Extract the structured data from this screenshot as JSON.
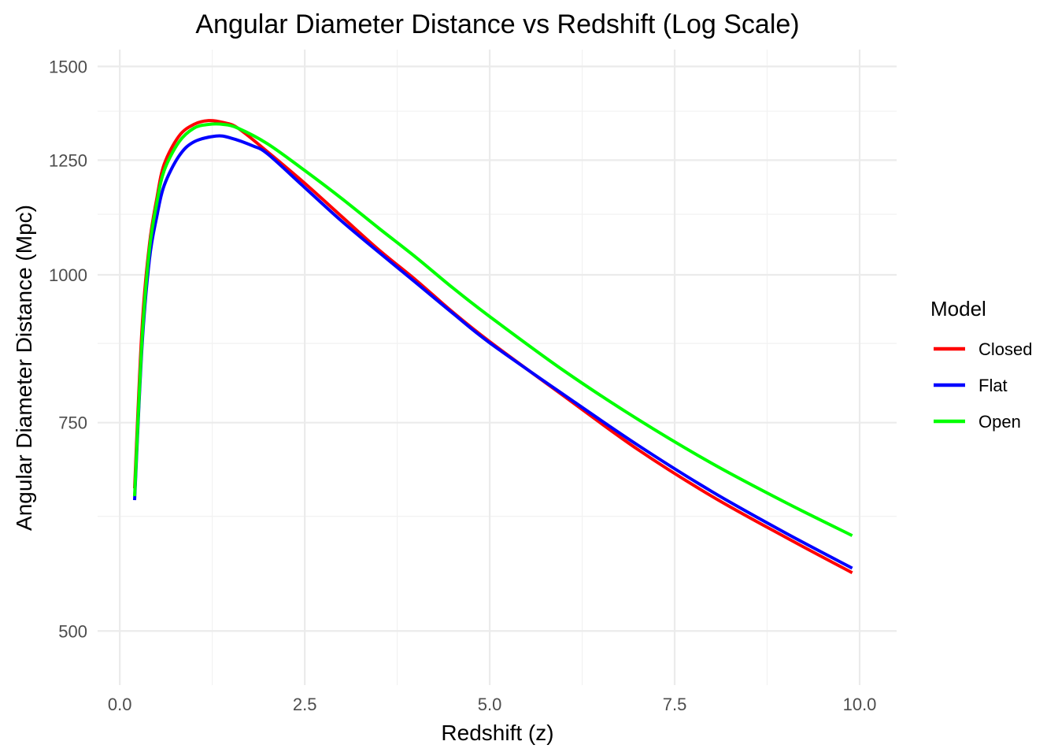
{
  "chart_data": {
    "type": "line",
    "title": "Angular Diameter Distance vs Redshift (Log Scale)",
    "xlabel": "Redshift (z)",
    "ylabel": "Angular Diameter Distance (Mpc)",
    "xlim": [
      -0.3,
      10.5
    ],
    "ylim": [
      450,
      1550
    ],
    "y_log_scale": true,
    "x_ticks": [
      0.0,
      2.5,
      5.0,
      7.5,
      10.0
    ],
    "x_tick_labels": [
      "0.0",
      "2.5",
      "5.0",
      "7.5",
      "10.0"
    ],
    "y_ticks": [
      500,
      750,
      1000,
      1250,
      1500
    ],
    "y_tick_labels": [
      "500",
      "750",
      "1000",
      "1250",
      "1500"
    ],
    "grid": true,
    "legend": {
      "title": "Model",
      "placement": "right"
    },
    "series": [
      {
        "name": "Closed",
        "color": "#ff0000",
        "x": [
          0.2,
          0.3,
          0.4,
          0.5,
          0.6,
          0.8,
          1.0,
          1.2,
          1.4,
          1.6,
          2.0,
          2.5,
          3.0,
          3.5,
          4.0,
          4.5,
          5.0,
          6.0,
          7.0,
          8.0,
          9.0,
          9.9
        ],
        "y": [
          660,
          900,
          1060,
          1160,
          1240,
          1310,
          1340,
          1350,
          1345,
          1330,
          1270,
          1195,
          1120,
          1050,
          990,
          930,
          878,
          790,
          712,
          650,
          600,
          560
        ]
      },
      {
        "name": "Flat",
        "color": "#0000ff",
        "x": [
          0.2,
          0.3,
          0.4,
          0.5,
          0.6,
          0.8,
          1.0,
          1.3,
          1.5,
          1.8,
          2.0,
          2.5,
          3.0,
          3.5,
          4.0,
          4.5,
          5.0,
          6.0,
          7.0,
          8.0,
          9.0,
          9.9
        ],
        "y": [
          645,
          870,
          1030,
          1120,
          1190,
          1260,
          1295,
          1310,
          1305,
          1285,
          1265,
          1185,
          1110,
          1045,
          985,
          928,
          876,
          792,
          718,
          656,
          605,
          565
        ]
      },
      {
        "name": "Open",
        "color": "#00ff00",
        "x": [
          0.2,
          0.3,
          0.4,
          0.5,
          0.6,
          0.8,
          1.0,
          1.2,
          1.4,
          1.6,
          2.0,
          2.5,
          3.0,
          3.5,
          4.0,
          4.5,
          5.0,
          6.0,
          7.0,
          8.0,
          9.0,
          9.9
        ],
        "y": [
          650,
          880,
          1050,
          1150,
          1225,
          1295,
          1330,
          1340,
          1340,
          1330,
          1290,
          1225,
          1160,
          1095,
          1035,
          975,
          922,
          830,
          755,
          693,
          642,
          602
        ]
      }
    ]
  }
}
